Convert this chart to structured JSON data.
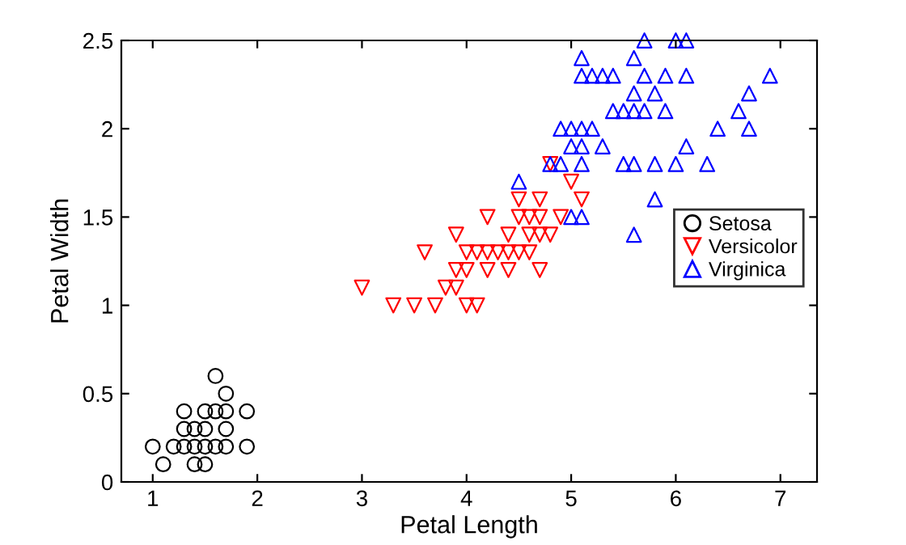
{
  "chart_data": {
    "type": "scatter",
    "xlabel": "Petal Length",
    "ylabel": "Petal Width",
    "xlim": [
      0.7,
      7.35
    ],
    "ylim": [
      0,
      2.5
    ],
    "xticks": [
      1,
      2,
      3,
      4,
      5,
      6,
      7
    ],
    "yticks": [
      0,
      0.5,
      1,
      1.5,
      2,
      2.5
    ],
    "grid": false,
    "legend": "right",
    "series": [
      {
        "name": "Setosa",
        "color": "#000000",
        "marker": "circle",
        "x": [
          1.4,
          1.3,
          1.5,
          1.7,
          1.4,
          1.5,
          1.6,
          1.4,
          1.1,
          1.2,
          1.5,
          1.3,
          1.7,
          1.5,
          1.7,
          1.0,
          1.7,
          1.9,
          1.6,
          1.3,
          1.6,
          1.9
        ],
        "values": [
          0.2,
          0.2,
          0.2,
          0.4,
          0.3,
          0.1,
          0.2,
          0.1,
          0.1,
          0.2,
          0.4,
          0.4,
          0.3,
          0.3,
          0.2,
          0.2,
          0.5,
          0.2,
          0.4,
          0.3,
          0.6,
          0.4
        ]
      },
      {
        "name": "Versicolor",
        "color": "#ff0000",
        "marker": "triangle_down",
        "x": [
          4.7,
          4.5,
          4.9,
          4.0,
          4.6,
          4.5,
          4.7,
          3.3,
          4.6,
          3.9,
          3.5,
          4.2,
          4.0,
          3.6,
          4.4,
          4.1,
          3.9,
          4.8,
          4.7,
          4.3,
          4.8,
          5.0,
          3.8,
          3.7,
          3.9,
          5.1,
          4.5,
          4.7,
          4.4,
          4.1,
          4.4,
          4.6,
          4.0,
          4.2,
          4.2,
          3.0
        ],
        "values": [
          1.4,
          1.5,
          1.5,
          1.3,
          1.5,
          1.3,
          1.6,
          1.0,
          1.3,
          1.4,
          1.0,
          1.5,
          1.0,
          1.3,
          1.4,
          1.0,
          1.1,
          1.8,
          1.2,
          1.3,
          1.4,
          1.7,
          1.1,
          1.0,
          1.2,
          1.6,
          1.6,
          1.5,
          1.3,
          1.3,
          1.2,
          1.4,
          1.2,
          1.3,
          1.2,
          1.1
        ]
      },
      {
        "name": "Virginica",
        "color": "#0000ff",
        "marker": "triangle",
        "x": [
          6.0,
          5.1,
          5.9,
          5.6,
          5.8,
          6.6,
          4.5,
          6.3,
          5.8,
          6.1,
          5.1,
          5.3,
          5.5,
          5.0,
          5.1,
          5.3,
          5.5,
          6.7,
          6.9,
          5.0,
          5.7,
          4.9,
          6.7,
          4.9,
          5.7,
          6.0,
          4.8,
          5.6,
          5.8,
          6.1,
          6.4,
          5.6,
          5.1,
          5.6,
          6.1,
          5.6,
          5.4,
          5.1,
          5.9,
          5.7,
          5.2,
          5.0,
          5.2,
          5.4,
          5.1
        ],
        "values": [
          2.5,
          1.9,
          2.1,
          1.8,
          2.2,
          2.1,
          1.7,
          1.8,
          1.8,
          2.5,
          2.0,
          1.9,
          2.1,
          2.0,
          2.4,
          2.3,
          1.8,
          2.2,
          2.3,
          1.5,
          2.3,
          2.0,
          2.0,
          1.8,
          2.1,
          1.8,
          1.8,
          2.1,
          1.6,
          1.9,
          2.0,
          2.2,
          1.5,
          1.4,
          2.3,
          2.4,
          2.1,
          2.3,
          2.3,
          2.5,
          2.3,
          1.9,
          2.0,
          2.3,
          1.8
        ]
      }
    ]
  }
}
